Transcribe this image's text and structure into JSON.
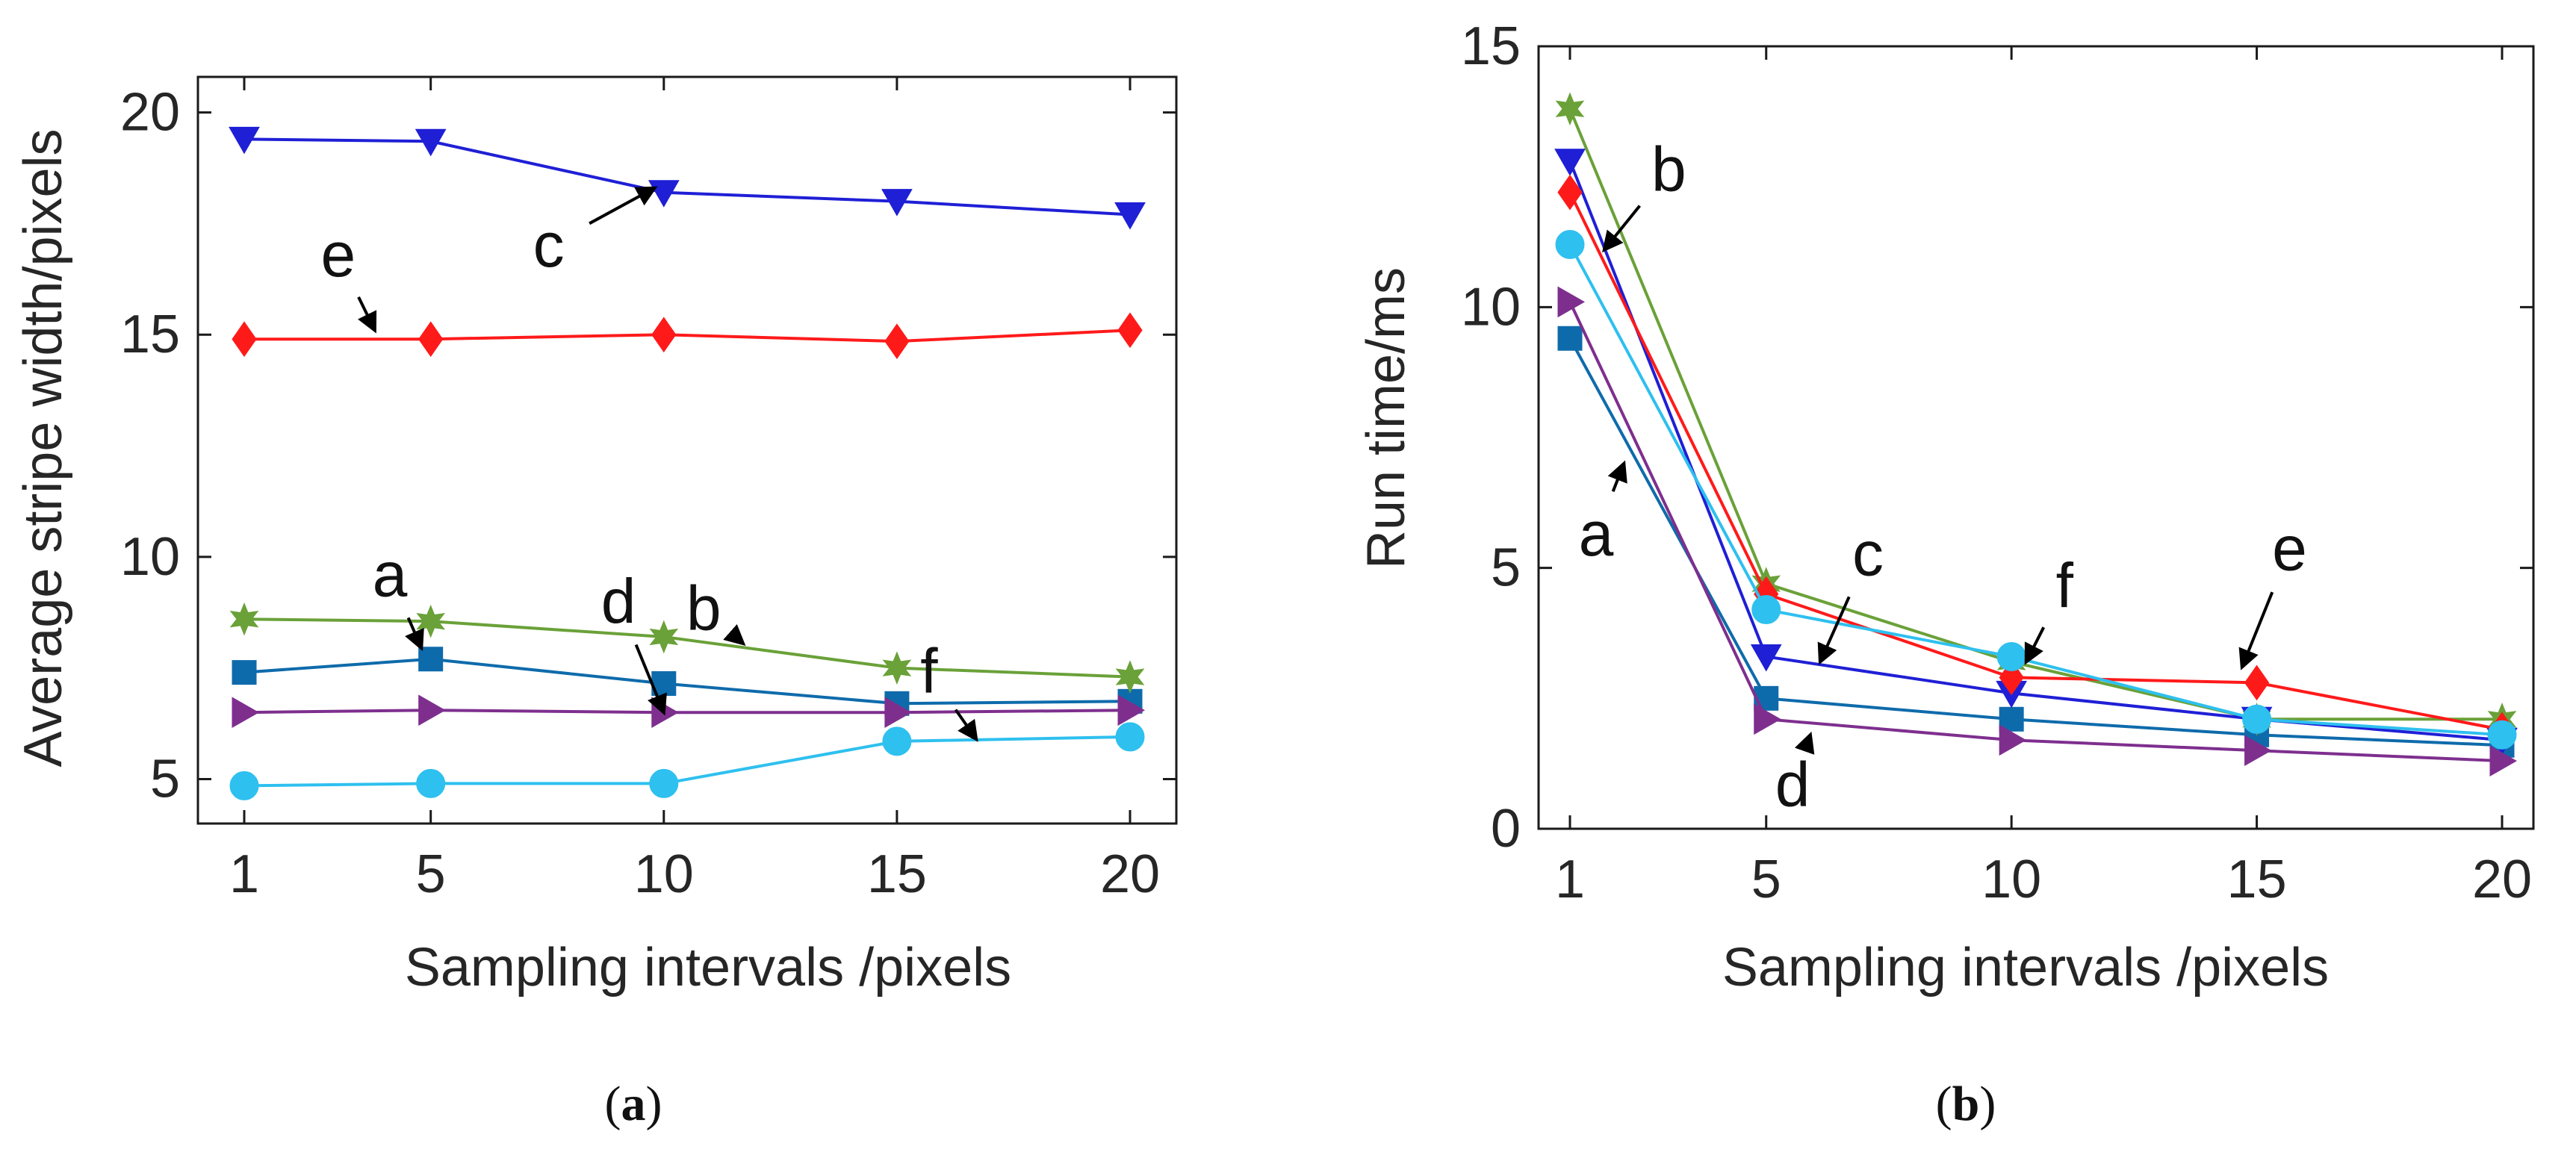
{
  "chart_data": [
    {
      "type": "line",
      "panel": "a",
      "caption": "(a)",
      "xlabel": "Sampling intervals /pixels",
      "ylabel": "Average stripe width/pixels",
      "x": [
        1,
        5,
        10,
        15,
        20
      ],
      "xticks": [
        1,
        5,
        10,
        15,
        20
      ],
      "yticks": [
        5,
        10,
        15,
        20
      ],
      "xlim": [
        1,
        20
      ],
      "ylim": [
        4,
        20.8
      ],
      "grid": false,
      "series": [
        {
          "name": "a",
          "marker": "square",
          "color": "#0e6bab",
          "values": [
            7.4,
            7.7,
            7.15,
            6.7,
            6.75
          ]
        },
        {
          "name": "b",
          "marker": "star",
          "color": "#6aa138",
          "values": [
            8.6,
            8.55,
            8.2,
            7.5,
            7.3
          ]
        },
        {
          "name": "c",
          "marker": "triangle-down",
          "color": "#1f1fd6",
          "values": [
            19.4,
            19.35,
            18.2,
            18.0,
            17.7
          ]
        },
        {
          "name": "d",
          "marker": "triangle-right",
          "color": "#7e2f8e",
          "values": [
            6.5,
            6.55,
            6.5,
            6.5,
            6.55
          ]
        },
        {
          "name": "e",
          "marker": "diamond",
          "color": "#ff1a1a",
          "values": [
            14.9,
            14.9,
            15.0,
            14.85,
            15.1
          ]
        },
        {
          "name": "f",
          "marker": "circle",
          "color": "#2ec0ef",
          "values": [
            4.85,
            4.9,
            4.9,
            5.85,
            5.95
          ]
        }
      ],
      "annotations": [
        {
          "label": "a",
          "from": [
            4.2,
            9.4
          ],
          "to": [
            4.8,
            7.95
          ]
        },
        {
          "label": "b",
          "from": [
            11.0,
            8.7
          ],
          "to": [
            11.7,
            8.05
          ]
        },
        {
          "label": "c",
          "from": [
            7.7,
            17.1
          ],
          "to": [
            9.8,
            18.3
          ]
        },
        {
          "label": "d",
          "from": [
            9.1,
            8.8
          ],
          "to": [
            10.0,
            6.5
          ]
        },
        {
          "label": "e",
          "from": [
            3.1,
            16.6
          ],
          "to": [
            3.8,
            15.1
          ]
        },
        {
          "label": "f",
          "from": [
            15.8,
            7.25
          ],
          "to": [
            16.7,
            5.9
          ]
        }
      ]
    },
    {
      "type": "line",
      "panel": "b",
      "caption": "(b)",
      "xlabel": "Sampling intervals /pixels",
      "ylabel": "Run time/ms",
      "x": [
        1,
        5,
        10,
        15,
        20
      ],
      "xticks": [
        1,
        5,
        10,
        15,
        20
      ],
      "yticks": [
        0,
        5,
        10,
        15
      ],
      "xlim": [
        1,
        20
      ],
      "ylim": [
        0,
        15
      ],
      "grid": false,
      "series": [
        {
          "name": "a",
          "marker": "square",
          "color": "#0e6bab",
          "values": [
            9.4,
            2.5,
            2.1,
            1.8,
            1.6
          ]
        },
        {
          "name": "b",
          "marker": "star",
          "color": "#6aa138",
          "values": [
            13.8,
            4.7,
            3.2,
            2.1,
            2.1
          ]
        },
        {
          "name": "c",
          "marker": "triangle-down",
          "color": "#1f1fd6",
          "values": [
            12.8,
            3.3,
            2.6,
            2.1,
            1.7
          ]
        },
        {
          "name": "d",
          "marker": "triangle-right",
          "color": "#7e2f8e",
          "values": [
            10.1,
            2.1,
            1.7,
            1.5,
            1.3
          ]
        },
        {
          "name": "e",
          "marker": "diamond",
          "color": "#ff1a1a",
          "values": [
            12.2,
            4.5,
            2.9,
            2.8,
            1.9
          ]
        },
        {
          "name": "f",
          "marker": "circle",
          "color": "#2ec0ef",
          "values": [
            11.2,
            4.2,
            3.3,
            2.1,
            1.8
          ]
        }
      ],
      "annotations": [
        {
          "label": "a",
          "from": [
            1.6,
            5.8
          ],
          "to": [
            2.1,
            7.0
          ]
        },
        {
          "label": "b",
          "from": [
            2.9,
            12.5
          ],
          "to": [
            1.7,
            11.1
          ]
        },
        {
          "label": "c",
          "from": [
            7.0,
            5.1
          ],
          "to": [
            6.1,
            3.2
          ]
        },
        {
          "label": "d",
          "from": [
            5.6,
            1.0
          ],
          "to": [
            5.9,
            1.8
          ]
        },
        {
          "label": "e",
          "from": [
            15.6,
            5.2
          ],
          "to": [
            14.7,
            3.1
          ]
        },
        {
          "label": "f",
          "from": [
            11.0,
            4.5
          ],
          "to": [
            10.3,
            3.2
          ]
        }
      ]
    }
  ]
}
